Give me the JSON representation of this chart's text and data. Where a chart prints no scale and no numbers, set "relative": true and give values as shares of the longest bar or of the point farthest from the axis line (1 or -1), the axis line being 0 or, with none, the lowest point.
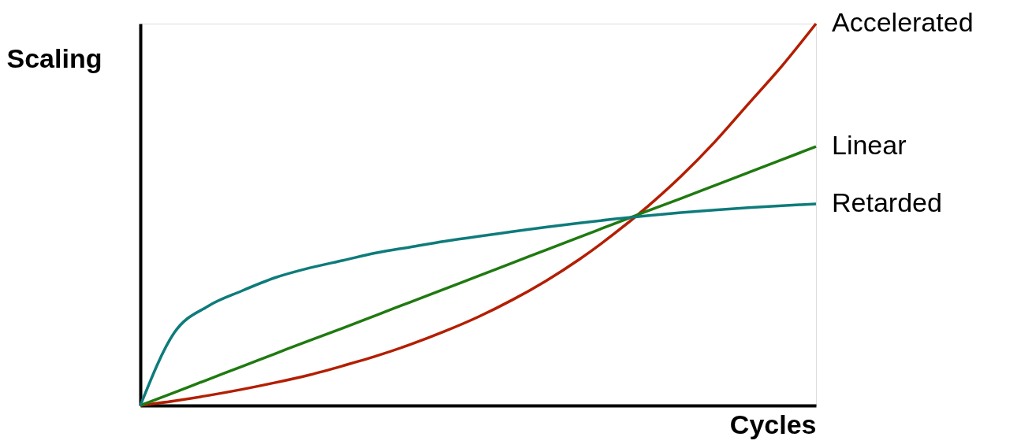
{
  "chart_data": {
    "type": "line",
    "relative": true,
    "xlabel": "Cycles",
    "ylabel": "Scaling",
    "legend": false,
    "grid": false,
    "tick_labels": false,
    "marker": "none",
    "line_style": "solid",
    "categories": [
      null,
      null,
      null,
      null,
      null,
      null,
      null,
      null,
      null,
      null,
      null,
      null,
      null,
      null,
      null,
      null,
      null,
      null,
      null,
      null,
      null
    ],
    "series": [
      {
        "name": "Accelerated",
        "color": "#b31e00",
        "values": [
          0,
          0.012,
          0.026,
          0.042,
          0.06,
          0.08,
          0.104,
          0.13,
          0.16,
          0.194,
          0.232,
          0.276,
          0.326,
          0.383,
          0.448,
          0.52,
          0.6,
          0.69,
          0.79,
          0.89,
          1.0
        ]
      },
      {
        "name": "Linear",
        "color": "#1f7a10",
        "values": [
          0,
          0.034,
          0.068,
          0.102,
          0.136,
          0.17,
          0.203,
          0.237,
          0.271,
          0.305,
          0.339,
          0.373,
          0.407,
          0.441,
          0.475,
          0.509,
          0.542,
          0.576,
          0.61,
          0.644,
          0.678
        ]
      },
      {
        "name": "Retarded",
        "color": "#0e7b7b",
        "values": [
          0,
          0.19,
          0.26,
          0.3,
          0.335,
          0.36,
          0.38,
          0.4,
          0.415,
          0.43,
          0.443,
          0.455,
          0.467,
          0.478,
          0.488,
          0.497,
          0.505,
          0.512,
          0.518,
          0.523,
          0.528
        ]
      }
    ]
  }
}
